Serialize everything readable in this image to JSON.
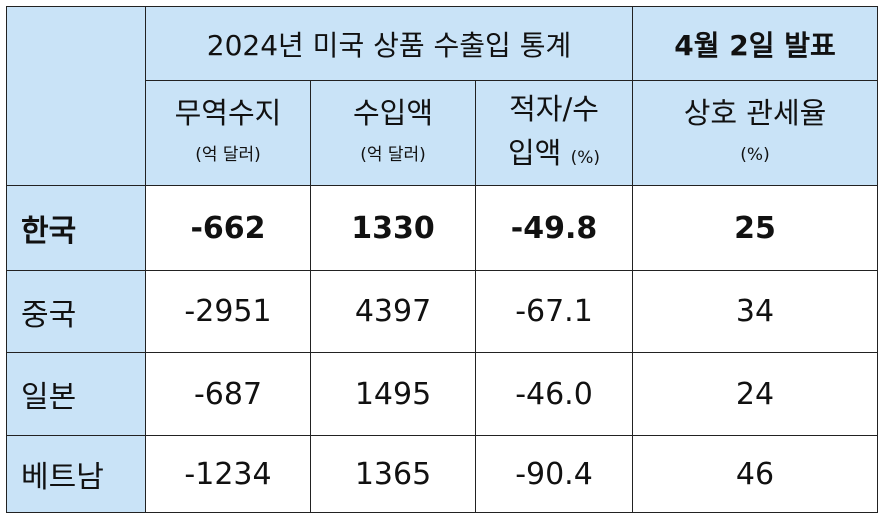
{
  "header": {
    "title": "2024년 미국 상품 수출입 통계",
    "announcement": "4월 2일 발표",
    "columns": [
      {
        "label": "무역수지",
        "unit": "(억 달러)"
      },
      {
        "label": "수입액",
        "unit": "(억 달러)"
      },
      {
        "label": "적자/수",
        "label2": "입액",
        "unit": "(%)"
      },
      {
        "label": "상호 관세율",
        "unit": "(%)"
      }
    ]
  },
  "rows": [
    {
      "country": "한국",
      "values": [
        "-662",
        "1330",
        "-49.8",
        "25"
      ],
      "bold": true
    },
    {
      "country": "중국",
      "values": [
        "-2951",
        "4397",
        "-67.1",
        "34"
      ],
      "bold": false
    },
    {
      "country": "일본",
      "values": [
        "-687",
        "1495",
        "-46.0",
        "24"
      ],
      "bold": false
    },
    {
      "country": "베트남",
      "values": [
        "-1234",
        "1365",
        "-90.4",
        "46"
      ],
      "bold": false
    }
  ]
}
